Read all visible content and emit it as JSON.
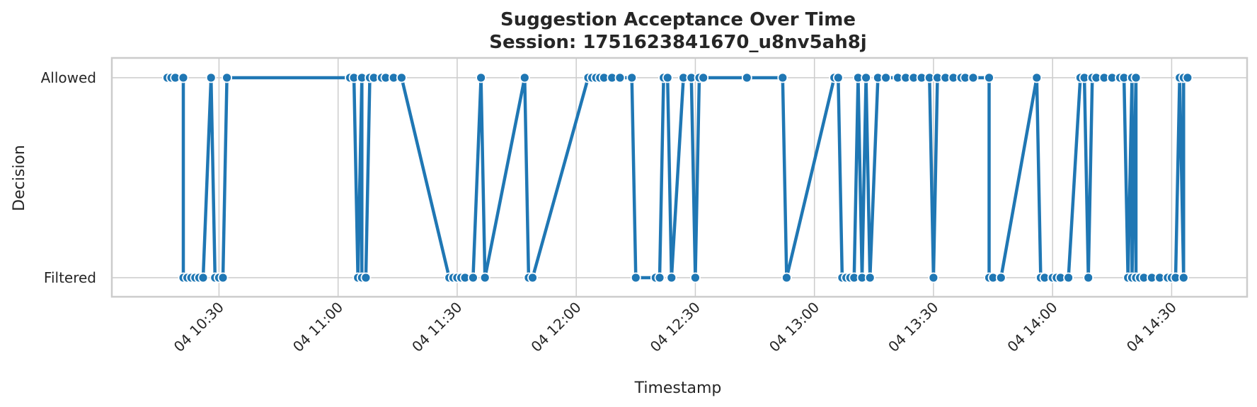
{
  "chart_data": {
    "type": "line",
    "title": "Suggestion Acceptance Over Time",
    "subtitle": "Session: 1751623841670_u8nv5ah8j",
    "xlabel": "Timestamp",
    "ylabel": "Decision",
    "y_categories": [
      "Filtered",
      "Allowed"
    ],
    "x_ticks": [
      "04 10:30",
      "04 11:00",
      "04 11:30",
      "04 12:00",
      "04 12:30",
      "04 13:00",
      "04 13:30",
      "04 14:00",
      "04 14:30"
    ],
    "x_range": [
      "2025-07-04 10:03",
      "2025-07-04 14:49"
    ],
    "grid": true,
    "line_color": "#1f77b4",
    "marker_edge_color": "#ffffff",
    "series": [
      {
        "points": [
          [
            "2025-07-04 10:17",
            "Allowed"
          ],
          [
            "2025-07-04 10:18",
            "Allowed"
          ],
          [
            "2025-07-04 10:19",
            "Allowed"
          ],
          [
            "2025-07-04 10:21",
            "Allowed"
          ],
          [
            "2025-07-04 10:21",
            "Filtered"
          ],
          [
            "2025-07-04 10:22",
            "Filtered"
          ],
          [
            "2025-07-04 10:23",
            "Filtered"
          ],
          [
            "2025-07-04 10:24",
            "Filtered"
          ],
          [
            "2025-07-04 10:25",
            "Filtered"
          ],
          [
            "2025-07-04 10:26",
            "Filtered"
          ],
          [
            "2025-07-04 10:28",
            "Allowed"
          ],
          [
            "2025-07-04 10:29",
            "Filtered"
          ],
          [
            "2025-07-04 10:30",
            "Filtered"
          ],
          [
            "2025-07-04 10:31",
            "Filtered"
          ],
          [
            "2025-07-04 10:32",
            "Allowed"
          ],
          [
            "2025-07-04 11:03",
            "Allowed"
          ],
          [
            "2025-07-04 11:04",
            "Allowed"
          ],
          [
            "2025-07-04 11:05",
            "Filtered"
          ],
          [
            "2025-07-04 11:06",
            "Allowed"
          ],
          [
            "2025-07-04 11:06",
            "Filtered"
          ],
          [
            "2025-07-04 11:07",
            "Filtered"
          ],
          [
            "2025-07-04 11:08",
            "Allowed"
          ],
          [
            "2025-07-04 11:09",
            "Allowed"
          ],
          [
            "2025-07-04 11:11",
            "Allowed"
          ],
          [
            "2025-07-04 11:12",
            "Allowed"
          ],
          [
            "2025-07-04 11:14",
            "Allowed"
          ],
          [
            "2025-07-04 11:16",
            "Allowed"
          ],
          [
            "2025-07-04 11:28",
            "Filtered"
          ],
          [
            "2025-07-04 11:29",
            "Filtered"
          ],
          [
            "2025-07-04 11:30",
            "Filtered"
          ],
          [
            "2025-07-04 11:31",
            "Filtered"
          ],
          [
            "2025-07-04 11:32",
            "Filtered"
          ],
          [
            "2025-07-04 11:34",
            "Filtered"
          ],
          [
            "2025-07-04 11:36",
            "Allowed"
          ],
          [
            "2025-07-04 11:37",
            "Filtered"
          ],
          [
            "2025-07-04 11:47",
            "Allowed"
          ],
          [
            "2025-07-04 11:48",
            "Filtered"
          ],
          [
            "2025-07-04 11:49",
            "Filtered"
          ],
          [
            "2025-07-04 12:03",
            "Allowed"
          ],
          [
            "2025-07-04 12:04",
            "Allowed"
          ],
          [
            "2025-07-04 12:05",
            "Allowed"
          ],
          [
            "2025-07-04 12:06",
            "Allowed"
          ],
          [
            "2025-07-04 12:07",
            "Allowed"
          ],
          [
            "2025-07-04 12:09",
            "Allowed"
          ],
          [
            "2025-07-04 12:11",
            "Allowed"
          ],
          [
            "2025-07-04 12:14",
            "Allowed"
          ],
          [
            "2025-07-04 12:15",
            "Filtered"
          ],
          [
            "2025-07-04 12:20",
            "Filtered"
          ],
          [
            "2025-07-04 12:21",
            "Filtered"
          ],
          [
            "2025-07-04 12:22",
            "Allowed"
          ],
          [
            "2025-07-04 12:23",
            "Allowed"
          ],
          [
            "2025-07-04 12:24",
            "Filtered"
          ],
          [
            "2025-07-04 12:27",
            "Allowed"
          ],
          [
            "2025-07-04 12:29",
            "Allowed"
          ],
          [
            "2025-07-04 12:30",
            "Filtered"
          ],
          [
            "2025-07-04 12:31",
            "Allowed"
          ],
          [
            "2025-07-04 12:32",
            "Allowed"
          ],
          [
            "2025-07-04 12:43",
            "Allowed"
          ],
          [
            "2025-07-04 12:52",
            "Allowed"
          ],
          [
            "2025-07-04 12:53",
            "Filtered"
          ],
          [
            "2025-07-04 13:05",
            "Allowed"
          ],
          [
            "2025-07-04 13:06",
            "Allowed"
          ],
          [
            "2025-07-04 13:07",
            "Filtered"
          ],
          [
            "2025-07-04 13:08",
            "Filtered"
          ],
          [
            "2025-07-04 13:09",
            "Filtered"
          ],
          [
            "2025-07-04 13:10",
            "Filtered"
          ],
          [
            "2025-07-04 13:11",
            "Allowed"
          ],
          [
            "2025-07-04 13:12",
            "Filtered"
          ],
          [
            "2025-07-04 13:13",
            "Allowed"
          ],
          [
            "2025-07-04 13:14",
            "Filtered"
          ],
          [
            "2025-07-04 13:16",
            "Allowed"
          ],
          [
            "2025-07-04 13:18",
            "Allowed"
          ],
          [
            "2025-07-04 13:21",
            "Allowed"
          ],
          [
            "2025-07-04 13:23",
            "Allowed"
          ],
          [
            "2025-07-04 13:25",
            "Allowed"
          ],
          [
            "2025-07-04 13:27",
            "Allowed"
          ],
          [
            "2025-07-04 13:29",
            "Allowed"
          ],
          [
            "2025-07-04 13:30",
            "Filtered"
          ],
          [
            "2025-07-04 13:31",
            "Allowed"
          ],
          [
            "2025-07-04 13:33",
            "Allowed"
          ],
          [
            "2025-07-04 13:35",
            "Allowed"
          ],
          [
            "2025-07-04 13:37",
            "Allowed"
          ],
          [
            "2025-07-04 13:38",
            "Allowed"
          ],
          [
            "2025-07-04 13:40",
            "Allowed"
          ],
          [
            "2025-07-04 13:44",
            "Allowed"
          ],
          [
            "2025-07-04 13:44",
            "Filtered"
          ],
          [
            "2025-07-04 13:45",
            "Filtered"
          ],
          [
            "2025-07-04 13:47",
            "Filtered"
          ],
          [
            "2025-07-04 13:56",
            "Allowed"
          ],
          [
            "2025-07-04 13:57",
            "Filtered"
          ],
          [
            "2025-07-04 13:58",
            "Filtered"
          ],
          [
            "2025-07-04 14:00",
            "Filtered"
          ],
          [
            "2025-07-04 14:01",
            "Filtered"
          ],
          [
            "2025-07-04 14:02",
            "Filtered"
          ],
          [
            "2025-07-04 14:04",
            "Filtered"
          ],
          [
            "2025-07-04 14:07",
            "Allowed"
          ],
          [
            "2025-07-04 14:08",
            "Allowed"
          ],
          [
            "2025-07-04 14:09",
            "Filtered"
          ],
          [
            "2025-07-04 14:10",
            "Allowed"
          ],
          [
            "2025-07-04 14:11",
            "Allowed"
          ],
          [
            "2025-07-04 14:13",
            "Allowed"
          ],
          [
            "2025-07-04 14:15",
            "Allowed"
          ],
          [
            "2025-07-04 14:17",
            "Allowed"
          ],
          [
            "2025-07-04 14:18",
            "Allowed"
          ],
          [
            "2025-07-04 14:19",
            "Filtered"
          ],
          [
            "2025-07-04 14:20",
            "Allowed"
          ],
          [
            "2025-07-04 14:20",
            "Filtered"
          ],
          [
            "2025-07-04 14:21",
            "Allowed"
          ],
          [
            "2025-07-04 14:21",
            "Filtered"
          ],
          [
            "2025-07-04 14:22",
            "Filtered"
          ],
          [
            "2025-07-04 14:23",
            "Filtered"
          ],
          [
            "2025-07-04 14:25",
            "Filtered"
          ],
          [
            "2025-07-04 14:27",
            "Filtered"
          ],
          [
            "2025-07-04 14:29",
            "Filtered"
          ],
          [
            "2025-07-04 14:30",
            "Filtered"
          ],
          [
            "2025-07-04 14:31",
            "Filtered"
          ],
          [
            "2025-07-04 14:32",
            "Allowed"
          ],
          [
            "2025-07-04 14:33",
            "Filtered"
          ],
          [
            "2025-07-04 14:33",
            "Allowed"
          ],
          [
            "2025-07-04 14:34",
            "Allowed"
          ]
        ]
      }
    ]
  }
}
